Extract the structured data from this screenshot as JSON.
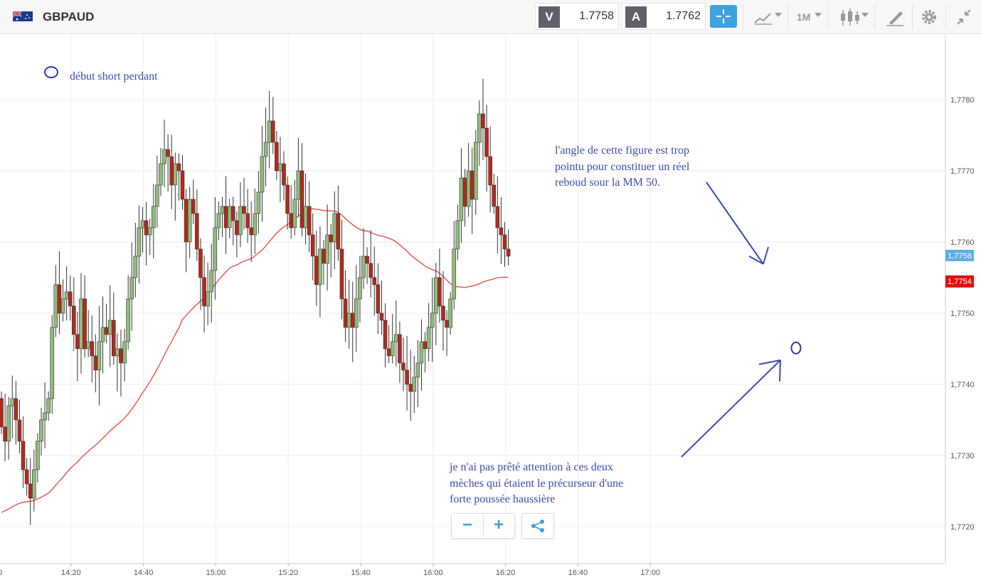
{
  "toolbar": {
    "symbol": "GBPAUD",
    "sell": {
      "label": "V",
      "price": "1.7758"
    },
    "buy": {
      "label": "A",
      "price": "1.7762"
    },
    "timeframe": "1M",
    "icons": [
      "crosshair-icon",
      "line-chart-icon",
      "candlestick-icon",
      "drawing-tools-icon",
      "gear-icon",
      "collapse-icon"
    ]
  },
  "annotations": {
    "legend": "début short perdant",
    "note_angle": "l'angle de cette figure est trop\npointu pour constituer un réel\nreboud sour la MM 50.",
    "note_wicks": "je n'ai pas prêté attention à ces deux\nmèches qui étaient le précurseur d'une\nforte poussée haussière"
  },
  "price_labels": {
    "current": "1,7758",
    "ma": "1,7754"
  },
  "zoom": {
    "minus": "−",
    "plus": "+"
  },
  "colors": {
    "up": "#8fbc7c",
    "down": "#b22a1d",
    "ma": "#e53a2e",
    "accent": "#3fa2e0",
    "annotation": "#3a4bb0"
  },
  "chart_data": {
    "type": "candlestick",
    "title": "",
    "xlabel": "",
    "ylabel": "",
    "ylim": [
      1.7712,
      1.7788
    ],
    "yticks": [
      1.772,
      1.773,
      1.774,
      1.775,
      1.776,
      1.777,
      1.778
    ],
    "ytick_labels": [
      "1,7720",
      "1,7730",
      "1,7740",
      "1,7750",
      "1,7760",
      "1,7770",
      "1,7780"
    ],
    "xticks": [
      {
        "t": 20,
        "label": "14:20"
      },
      {
        "t": 40,
        "label": "14:40"
      },
      {
        "t": 60,
        "label": "15:00"
      },
      {
        "t": 80,
        "label": "15:20"
      },
      {
        "t": 100,
        "label": "15:40"
      },
      {
        "t": 120,
        "label": "16:00"
      },
      {
        "t": 140,
        "label": "16:20"
      },
      {
        "t": 160,
        "label": "16:40"
      },
      {
        "t": 180,
        "label": "17:00"
      }
    ],
    "closes": [
      1.7734,
      1.7732,
      1.7737,
      1.7738,
      1.7735,
      1.7732,
      1.7728,
      1.7726,
      1.7724,
      1.7728,
      1.7732,
      1.7735,
      1.7736,
      1.7738,
      1.7748,
      1.7754,
      1.775,
      1.7752,
      1.7753,
      1.7751,
      1.7747,
      1.7745,
      1.7752,
      1.7745,
      1.7746,
      1.7744,
      1.7742,
      1.7746,
      1.7748,
      1.7747,
      1.7749,
      1.7744,
      1.7745,
      1.7743,
      1.7746,
      1.7752,
      1.7755,
      1.7758,
      1.7762,
      1.7763,
      1.7761,
      1.7762,
      1.7765,
      1.7768,
      1.7771,
      1.7773,
      1.7772,
      1.7768,
      1.7771,
      1.777,
      1.7766,
      1.776,
      1.7766,
      1.7764,
      1.7759,
      1.7755,
      1.7751,
      1.7753,
      1.7756,
      1.7762,
      1.7764,
      1.7765,
      1.7762,
      1.7765,
      1.7763,
      1.7761,
      1.7765,
      1.7764,
      1.7762,
      1.7761,
      1.7764,
      1.7767,
      1.7772,
      1.7774,
      1.7777,
      1.7774,
      1.777,
      1.7771,
      1.7768,
      1.7764,
      1.7762,
      1.7766,
      1.777,
      1.7762,
      1.7765,
      1.7761,
      1.7758,
      1.7754,
      1.7759,
      1.7757,
      1.7761,
      1.776,
      1.7764,
      1.7759,
      1.7752,
      1.7748,
      1.775,
      1.7748,
      1.7752,
      1.7755,
      1.7758,
      1.7757,
      1.7755,
      1.7754,
      1.775,
      1.7749,
      1.7745,
      1.7744,
      1.7746,
      1.7747,
      1.7743,
      1.7742,
      1.774,
      1.7739,
      1.7741,
      1.7743,
      1.7746,
      1.7745,
      1.7748,
      1.775,
      1.7755,
      1.7751,
      1.7749,
      1.7748,
      1.7752,
      1.7759,
      1.7763,
      1.7769,
      1.7765,
      1.777,
      1.7766,
      1.7774,
      1.7778,
      1.7776,
      1.7772,
      1.7768,
      1.7765,
      1.7762,
      1.7761,
      1.7759,
      1.7758
    ],
    "ma_label": "MM 50"
  }
}
